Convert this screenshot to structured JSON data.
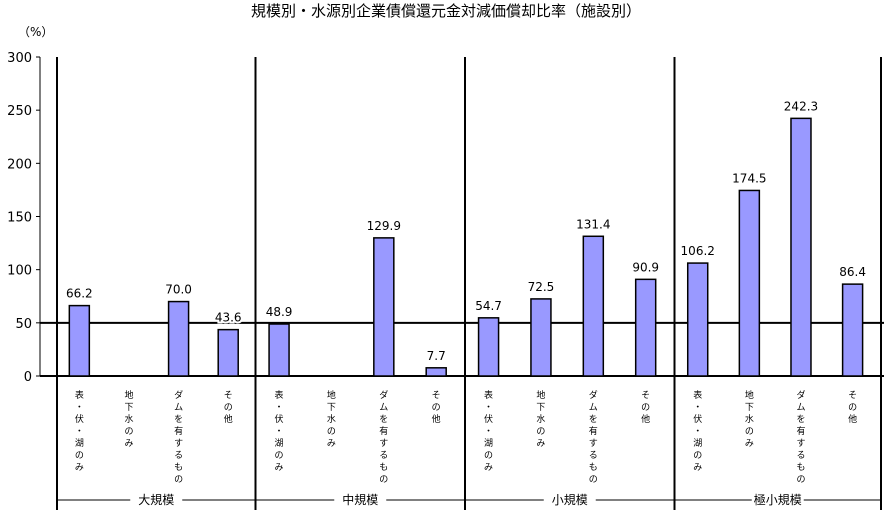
{
  "chart_data": {
    "type": "bar",
    "title": "規模別・水源別企業債償還元金対減価償却比率（施設別）",
    "y_unit": "（%）",
    "ylim": [
      0,
      300
    ],
    "yticks": [
      0,
      50,
      100,
      150,
      200,
      250,
      300
    ],
    "legend": "none",
    "grid": false,
    "bar_color": "#9999ff",
    "groups": [
      {
        "name": "大規模",
        "categories": [
          "表・伏・湖のみ",
          "地下水のみ",
          "ダムを有するもの",
          "その他"
        ],
        "values": [
          66.2,
          null,
          70.0,
          43.6
        ],
        "labels": [
          "66.2",
          "",
          "70.0",
          "43.6"
        ]
      },
      {
        "name": "中規模",
        "categories": [
          "表・伏・湖のみ",
          "地下水のみ",
          "ダムを有するもの",
          "その他"
        ],
        "values": [
          48.9,
          null,
          129.9,
          7.7
        ],
        "labels": [
          "48.9",
          "",
          "129.9",
          "7.7"
        ]
      },
      {
        "name": "小規模",
        "categories": [
          "表・伏・湖のみ",
          "地下水のみ",
          "ダムを有するもの",
          "その他"
        ],
        "values": [
          54.7,
          72.5,
          131.4,
          90.9
        ],
        "labels": [
          "54.7",
          "72.5",
          "131.4",
          "90.9"
        ]
      },
      {
        "name": "極小規模",
        "categories": [
          "表・伏・湖のみ",
          "地下水のみ",
          "ダムを有するもの",
          "その他"
        ],
        "values": [
          106.2,
          174.5,
          242.3,
          86.4
        ],
        "labels": [
          "106.2",
          "174.5",
          "242.3",
          "86.4"
        ]
      }
    ]
  }
}
